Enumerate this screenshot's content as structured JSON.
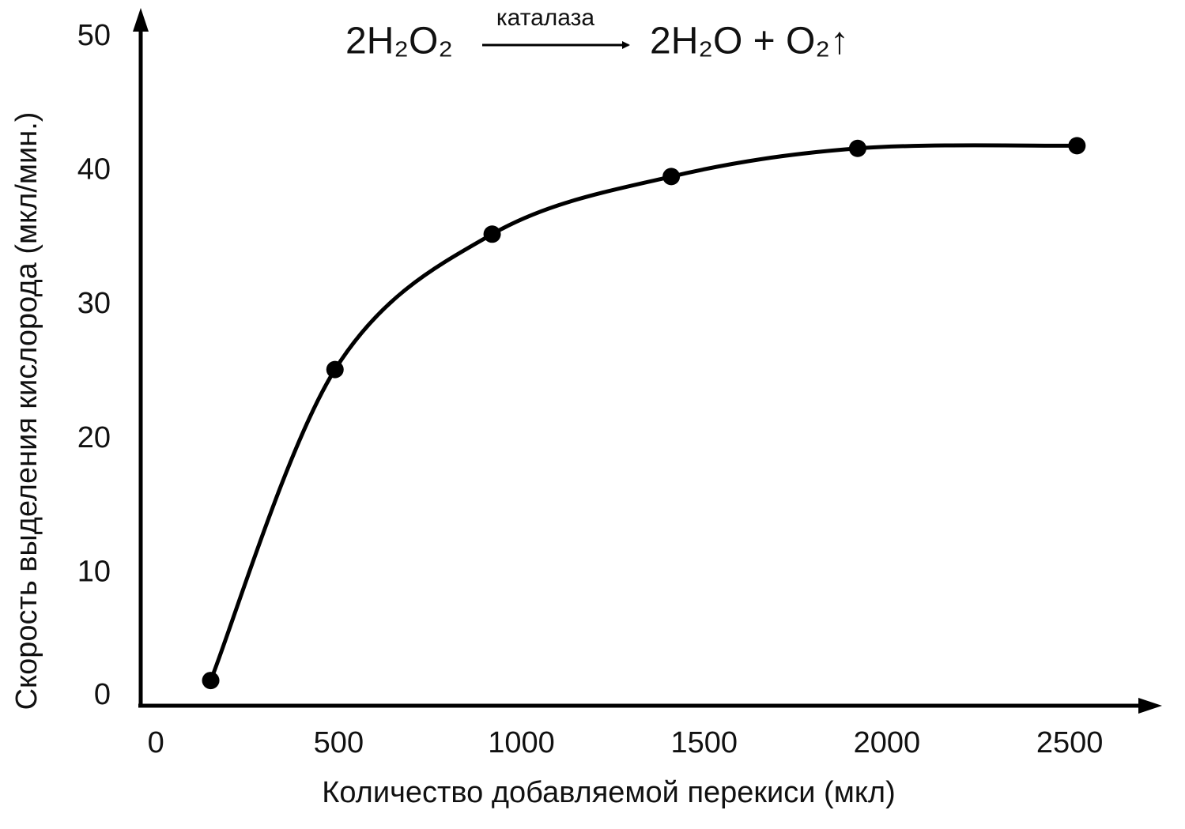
{
  "chart_data": {
    "type": "line",
    "annotations": [
      "2H₂O₂",
      "каталаза",
      "2H₂O + O₂↑"
    ],
    "x_label": "Количество добавляемой перекиси (мкл)",
    "y_label": "Скорость выделения кислорода (мкл/мин.)",
    "x": [
      150,
      490,
      920,
      1410,
      1920,
      2520
    ],
    "series": [
      {
        "color": "#000000",
        "values": [
          2,
          25.2,
          35.3,
          39.6,
          41.7,
          41.9
        ]
      }
    ],
    "xlim": [
      -48,
      2742
    ],
    "ylim": [
      0,
      50
    ],
    "xticks": [
      0,
      500,
      1000,
      1500,
      2000,
      2500
    ],
    "yticks": [
      0,
      10,
      20,
      30,
      40,
      50
    ],
    "grid": false,
    "smooth": true,
    "markers": true
  }
}
